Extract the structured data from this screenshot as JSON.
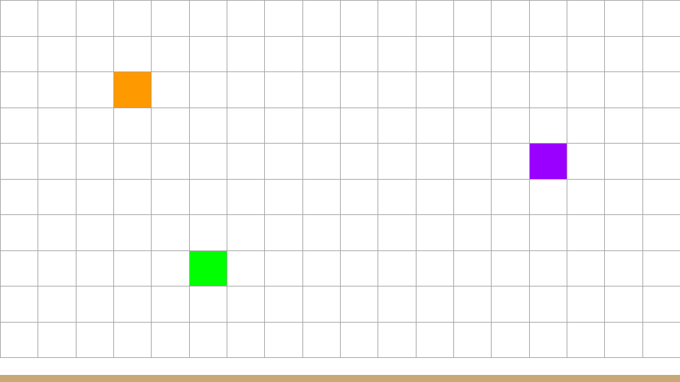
{
  "board": {
    "columns": 18,
    "rows": 10,
    "line_color": "#a6a6a6",
    "background_color": "#ffffff"
  },
  "tiles": [
    {
      "name": "orange-tile",
      "col": 3,
      "row": 2,
      "color": "#ff9900"
    },
    {
      "name": "purple-tile",
      "col": 14,
      "row": 4,
      "color": "#9900ff"
    },
    {
      "name": "green-tile",
      "col": 5,
      "row": 7,
      "color": "#00ff00"
    }
  ],
  "footer": {
    "bar_color": "#c9a878"
  }
}
